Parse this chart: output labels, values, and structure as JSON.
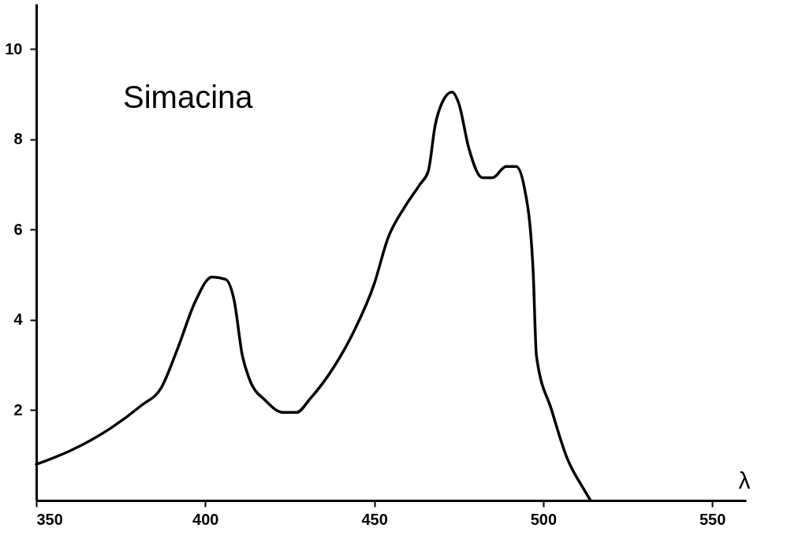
{
  "chart_data": {
    "type": "line",
    "xlabel": "λ",
    "annotations": [
      "Simacina"
    ],
    "x": [
      350,
      360,
      372,
      381,
      387,
      392,
      397,
      402,
      406,
      408.5,
      411,
      413,
      418,
      423,
      427,
      431,
      438,
      444,
      450,
      454,
      459,
      463.5,
      466,
      468,
      470,
      473,
      475,
      478,
      482,
      485,
      489,
      492,
      494.5,
      497,
      498,
      502.5,
      507,
      512,
      514
    ],
    "series": [
      {
        "color": "#000000",
        "values": [
          0.8,
          1.1,
          1.6,
          2.1,
          2.5,
          3.4,
          4.4,
          4.95,
          4.9,
          4.45,
          3.2,
          2.7,
          2.2,
          1.95,
          1.95,
          2.25,
          2.95,
          3.75,
          4.8,
          5.8,
          6.5,
          7.0,
          7.3,
          8.3,
          8.8,
          9.05,
          8.8,
          7.8,
          7.15,
          7.15,
          7.4,
          7.4,
          6.9,
          5.1,
          3.2,
          2.0,
          0.95,
          0.25,
          0
        ]
      }
    ],
    "xlim": [
      350,
      560
    ],
    "xticks": [
      350,
      400,
      450,
      500,
      550
    ],
    "ylim": [
      0,
      11
    ],
    "yticks": [
      2,
      4,
      6,
      8,
      10
    ],
    "grid": false,
    "line_style": "solid",
    "marker": "none"
  }
}
